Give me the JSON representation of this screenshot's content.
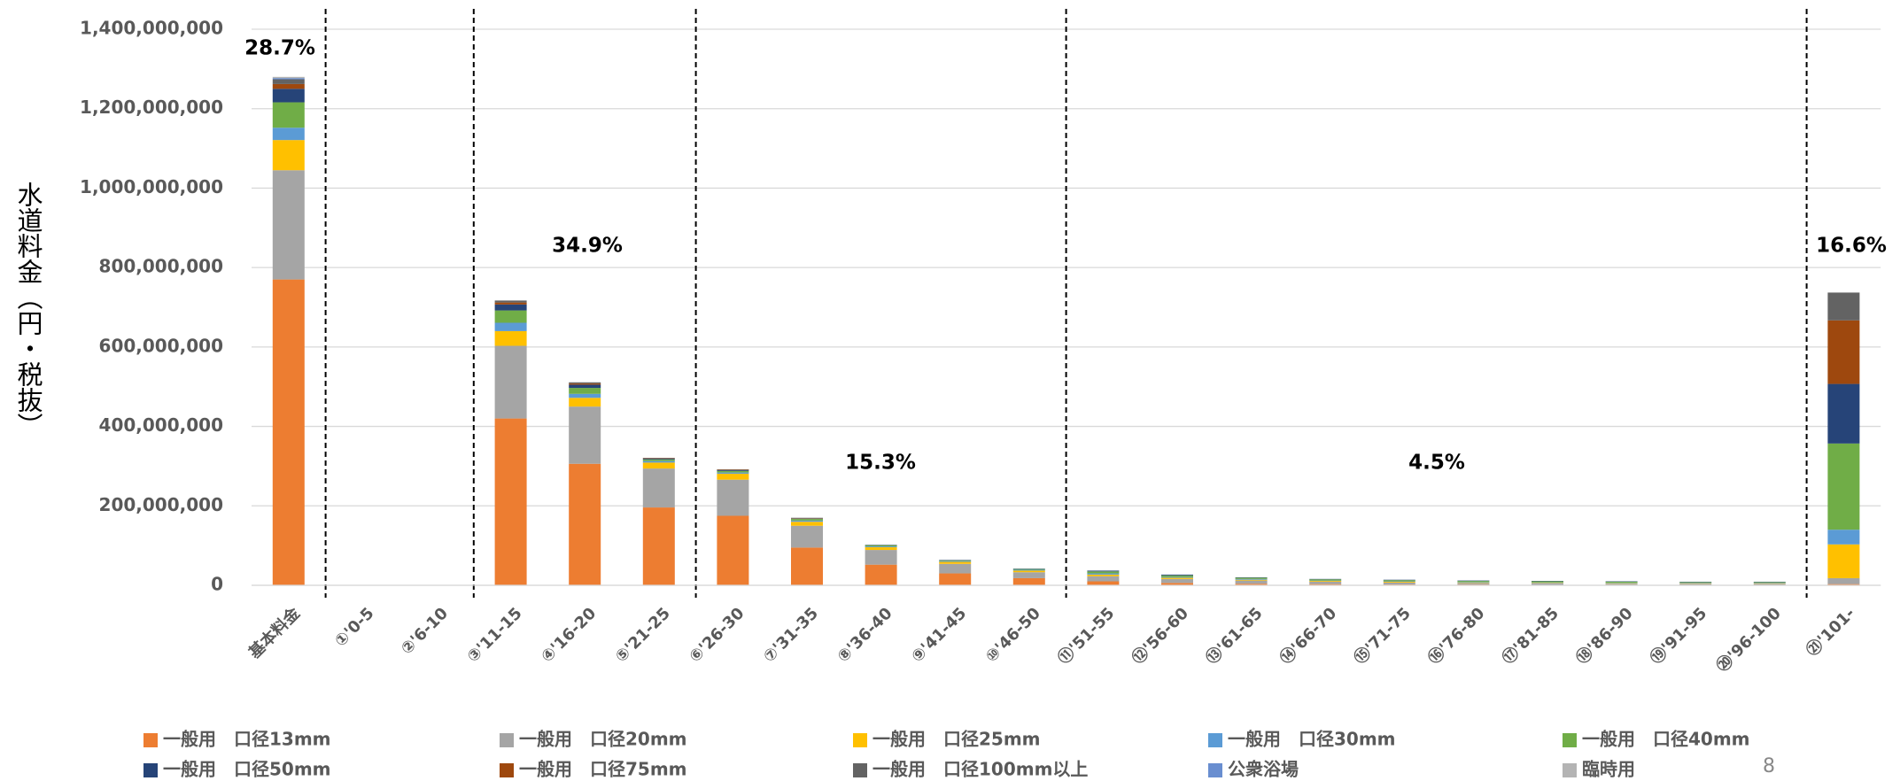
{
  "chart_data": {
    "type": "stacked_bar",
    "y_label": "水道料金（円・税抜）",
    "categories": [
      "基本料金",
      "①'0-5",
      "②'6-10",
      "③'11-15",
      "④'16-20",
      "⑤'21-25",
      "⑥'26-30",
      "⑦'31-35",
      "⑧'36-40",
      "⑨'41-45",
      "⑩'46-50",
      "⑪'51-55",
      "⑫'56-60",
      "⑬'61-65",
      "⑭'66-70",
      "⑮'71-75",
      "⑯'76-80",
      "⑰'81-85",
      "⑱'86-90",
      "⑲'91-95",
      "⑳'96-100",
      "㉑'101-"
    ],
    "series": [
      {
        "name": "一般用　口径13mm",
        "color": "#ED7D31",
        "values": [
          770000000,
          0,
          0,
          420000000,
          306000000,
          196000000,
          175000000,
          95000000,
          52000000,
          30000000,
          18000000,
          10000000,
          6000000,
          4000000,
          3000000,
          2000000,
          2000000,
          1000000,
          1000000,
          1000000,
          1000000,
          3000000
        ]
      },
      {
        "name": "一般用　口径20mm",
        "color": "#A5A5A5",
        "values": [
          275000000,
          0,
          0,
          183000000,
          144000000,
          98000000,
          91000000,
          55000000,
          37000000,
          24000000,
          15000000,
          13000000,
          10000000,
          8000000,
          6000000,
          5000000,
          4000000,
          4000000,
          3000000,
          3000000,
          3000000,
          15000000
        ]
      },
      {
        "name": "一般用　口径25mm",
        "color": "#FFC000",
        "values": [
          76000000,
          0,
          0,
          37000000,
          22000000,
          15000000,
          15000000,
          10000000,
          7000000,
          5000000,
          4000000,
          4000000,
          3000000,
          2000000,
          2000000,
          2000000,
          1000000,
          1000000,
          1000000,
          1000000,
          1000000,
          85000000
        ]
      },
      {
        "name": "一般用　口径30mm",
        "color": "#5B9BD5",
        "values": [
          31000000,
          0,
          0,
          21000000,
          10000000,
          4000000,
          3000000,
          3000000,
          2000000,
          2000000,
          2000000,
          3000000,
          2000000,
          2000000,
          1000000,
          1000000,
          1000000,
          1000000,
          1000000,
          1000000,
          1000000,
          37000000
        ]
      },
      {
        "name": "一般用　口径40mm",
        "color": "#70AD47",
        "values": [
          64000000,
          0,
          0,
          31000000,
          15000000,
          4000000,
          4000000,
          4000000,
          3000000,
          2000000,
          2000000,
          5000000,
          4000000,
          3000000,
          3000000,
          3000000,
          3000000,
          3000000,
          3000000,
          2000000,
          2000000,
          217000000
        ]
      },
      {
        "name": "一般用　口径50mm",
        "color": "#264478",
        "values": [
          34000000,
          0,
          0,
          15000000,
          8000000,
          2000000,
          2000000,
          1000000,
          1000000,
          1000000,
          1000000,
          2000000,
          2000000,
          1000000,
          1000000,
          1000000,
          1000000,
          1000000,
          1000000,
          1000000,
          1000000,
          150000000
        ]
      },
      {
        "name": "一般用　口径75mm",
        "color": "#9E480E",
        "values": [
          12000000,
          0,
          0,
          5000000,
          3000000,
          1000000,
          1000000,
          1000000,
          0,
          0,
          0,
          0,
          0,
          0,
          0,
          0,
          0,
          0,
          0,
          0,
          0,
          160000000
        ]
      },
      {
        "name": "一般用　口径100mm以上",
        "color": "#636363",
        "values": [
          12000000,
          0,
          0,
          5000000,
          3000000,
          1000000,
          1000000,
          1000000,
          0,
          0,
          0,
          0,
          0,
          0,
          0,
          0,
          0,
          0,
          0,
          0,
          0,
          70000000
        ]
      },
      {
        "name": "公衆浴場",
        "color": "#698ED0",
        "values": [
          3000000,
          0,
          0,
          0,
          0,
          0,
          0,
          0,
          0,
          0,
          0,
          0,
          0,
          0,
          0,
          0,
          0,
          0,
          0,
          0,
          0,
          0
        ]
      },
      {
        "name": "臨時用",
        "color": "#B4B4B4",
        "values": [
          3000000,
          0,
          0,
          0,
          0,
          0,
          0,
          0,
          0,
          0,
          0,
          0,
          0,
          0,
          0,
          0,
          0,
          0,
          0,
          0,
          0,
          0
        ]
      }
    ],
    "ylim": [
      0,
      1400000000
    ],
    "yticks": [
      0,
      {
        "value": 200000000,
        "label": "200,000,000"
      },
      {
        "value": 400000000,
        "label": "400,000,000"
      },
      {
        "value": 600000000,
        "label": "600,000,000"
      },
      {
        "value": 800000000,
        "label": "800,000,000"
      },
      {
        "value": 1000000000,
        "label": "1,000,000,000"
      },
      {
        "value": 1200000000,
        "label": "1,200,000,000"
      },
      {
        "value": 1400000000,
        "label": "1,400,000,000"
      }
    ],
    "grid": true,
    "annotations": [
      "28.7%",
      "34.9%",
      "15.3%",
      "4.5%",
      "16.6%"
    ],
    "page_number": "8"
  }
}
